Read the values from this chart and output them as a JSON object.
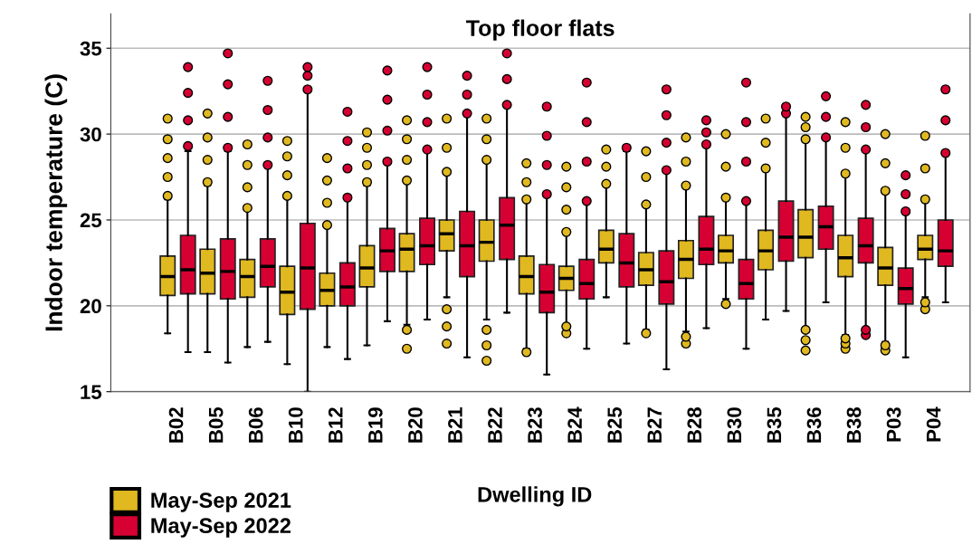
{
  "chart_data": {
    "type": "box",
    "title": "Top floor flats",
    "xlabel": "Dwelling ID",
    "ylabel": "Indoor temperature (C)",
    "categories": [
      "B02",
      "B05",
      "B06",
      "B10",
      "B12",
      "B19",
      "B20",
      "B21",
      "B22",
      "B23",
      "B24",
      "B25",
      "B27",
      "B28",
      "B30",
      "B35",
      "B36",
      "B38",
      "P03",
      "P04"
    ],
    "ylim": [
      15,
      37
    ],
    "yticks": [
      15,
      20,
      25,
      30,
      35
    ],
    "grid": "y",
    "legend": "bottom left",
    "marker": "circle",
    "series": [
      {
        "name": "May-Sep 2021",
        "color": "#e0b820",
        "boxes": [
          {
            "low": 18.4,
            "q1": 20.6,
            "median": 21.7,
            "q3": 22.9,
            "high": 26.2,
            "outliers": [
              26.4,
              27.5,
              28.6,
              29.7,
              30.9
            ]
          },
          {
            "low": 17.3,
            "q1": 20.7,
            "median": 21.9,
            "q3": 23.3,
            "high": 27.0,
            "outliers": [
              27.2,
              28.5,
              29.8,
              31.2
            ]
          },
          {
            "low": 17.6,
            "q1": 20.5,
            "median": 21.7,
            "q3": 22.7,
            "high": 25.7,
            "outliers": [
              25.7,
              26.9,
              28.2,
              29.4
            ]
          },
          {
            "low": 16.6,
            "q1": 19.5,
            "median": 20.8,
            "q3": 22.3,
            "high": 26.3,
            "outliers": [
              26.4,
              27.6,
              28.7,
              29.6
            ]
          },
          {
            "low": 17.6,
            "q1": 20.0,
            "median": 20.9,
            "q3": 21.9,
            "high": 24.6,
            "outliers": [
              24.7,
              26.0,
              27.3,
              28.6
            ]
          },
          {
            "low": 17.7,
            "q1": 21.1,
            "median": 22.2,
            "q3": 23.5,
            "high": 27.0,
            "outliers": [
              27.2,
              28.2,
              29.2,
              30.1
            ]
          },
          {
            "low": 18.9,
            "q1": 22.0,
            "median": 23.3,
            "q3": 24.2,
            "high": 27.2,
            "outliers": [
              17.5,
              18.6,
              27.3,
              28.5,
              29.7,
              30.8
            ]
          },
          {
            "low": 20.5,
            "q1": 23.2,
            "median": 24.2,
            "q3": 25.0,
            "high": 27.7,
            "outliers": [
              17.8,
              18.8,
              19.8,
              27.8,
              29.2,
              30.9
            ]
          },
          {
            "low": 19.2,
            "q1": 22.6,
            "median": 23.7,
            "q3": 25.0,
            "high": 28.4,
            "outliers": [
              16.8,
              17.7,
              18.6,
              28.5,
              29.7,
              30.9
            ]
          },
          {
            "low": 17.5,
            "q1": 20.7,
            "median": 21.7,
            "q3": 22.9,
            "high": 26.1,
            "outliers": [
              17.3,
              26.2,
              27.2,
              28.3
            ]
          },
          {
            "low": 18.9,
            "q1": 20.9,
            "median": 21.6,
            "q3": 22.3,
            "high": 24.2,
            "outliers": [
              18.4,
              18.8,
              24.3,
              25.6,
              26.9,
              28.1
            ]
          },
          {
            "low": 20.5,
            "q1": 22.5,
            "median": 23.3,
            "q3": 24.4,
            "high": 27.0,
            "outliers": [
              27.1,
              28.1,
              29.1
            ]
          },
          {
            "low": 18.6,
            "q1": 21.2,
            "median": 22.1,
            "q3": 23.1,
            "high": 25.8,
            "outliers": [
              18.4,
              25.9,
              27.5,
              29.0
            ]
          },
          {
            "low": 18.5,
            "q1": 21.6,
            "median": 22.7,
            "q3": 23.8,
            "high": 26.9,
            "outliers": [
              17.8,
              18.2,
              27.0,
              28.4,
              29.8
            ]
          },
          {
            "low": 20.4,
            "q1": 22.5,
            "median": 23.2,
            "q3": 24.1,
            "high": 26.2,
            "outliers": [
              20.1,
              26.3,
              28.1,
              30.0
            ]
          },
          {
            "low": 19.2,
            "q1": 22.1,
            "median": 23.2,
            "q3": 24.4,
            "high": 27.9,
            "outliers": [
              28.0,
              29.5,
              30.9
            ]
          },
          {
            "low": 18.7,
            "q1": 22.8,
            "median": 24.0,
            "q3": 25.6,
            "high": 29.6,
            "outliers": [
              17.4,
              18.0,
              18.6,
              29.7,
              30.4,
              31.0
            ]
          },
          {
            "low": 18.3,
            "q1": 21.7,
            "median": 22.8,
            "q3": 24.1,
            "high": 27.6,
            "outliers": [
              17.5,
              17.8,
              18.1,
              27.7,
              29.2,
              30.7
            ]
          },
          {
            "low": 17.9,
            "q1": 21.2,
            "median": 22.2,
            "q3": 23.4,
            "high": 26.6,
            "outliers": [
              17.4,
              17.7,
              26.7,
              28.3,
              30.0
            ]
          },
          {
            "low": 20.5,
            "q1": 22.7,
            "median": 23.3,
            "q3": 24.1,
            "high": 26.1,
            "outliers": [
              19.8,
              20.2,
              26.2,
              28.0,
              29.9
            ]
          }
        ]
      },
      {
        "name": "May-Sep 2022",
        "color": "#d70032",
        "boxes": [
          {
            "low": 17.3,
            "q1": 20.7,
            "median": 22.1,
            "q3": 24.1,
            "high": 29.0,
            "outliers": [
              29.3,
              30.8,
              32.4,
              33.9
            ]
          },
          {
            "low": 16.7,
            "q1": 20.4,
            "median": 22.0,
            "q3": 23.9,
            "high": 29.0,
            "outliers": [
              29.2,
              31.0,
              32.9,
              34.7
            ]
          },
          {
            "low": 17.9,
            "q1": 21.1,
            "median": 22.3,
            "q3": 23.9,
            "high": 28.1,
            "outliers": [
              28.2,
              29.8,
              31.4,
              33.1
            ]
          },
          {
            "low": 15.0,
            "q1": 19.8,
            "median": 22.2,
            "q3": 24.8,
            "high": 32.5,
            "outliers": [
              32.6,
              33.4,
              33.9
            ]
          },
          {
            "low": 16.9,
            "q1": 20.0,
            "median": 21.1,
            "q3": 22.5,
            "high": 26.2,
            "outliers": [
              26.3,
              28.0,
              29.6,
              31.3
            ]
          },
          {
            "low": 19.1,
            "q1": 22.0,
            "median": 23.2,
            "q3": 24.5,
            "high": 28.3,
            "outliers": [
              28.4,
              30.2,
              32.0,
              33.7
            ]
          },
          {
            "low": 19.2,
            "q1": 22.4,
            "median": 23.5,
            "q3": 25.1,
            "high": 29.0,
            "outliers": [
              29.1,
              30.7,
              32.3,
              33.9
            ]
          },
          {
            "low": 17.0,
            "q1": 21.7,
            "median": 23.5,
            "q3": 25.5,
            "high": 31.1,
            "outliers": [
              31.2,
              32.3,
              33.4
            ]
          },
          {
            "low": 19.6,
            "q1": 22.7,
            "median": 24.7,
            "q3": 26.3,
            "high": 31.7,
            "outliers": [
              31.7,
              33.2,
              34.7
            ]
          },
          {
            "low": 16.0,
            "q1": 19.6,
            "median": 20.8,
            "q3": 22.4,
            "high": 26.5,
            "outliers": [
              26.5,
              28.2,
              29.9,
              31.6
            ]
          },
          {
            "low": 17.5,
            "q1": 20.4,
            "median": 21.3,
            "q3": 22.7,
            "high": 26.0,
            "outliers": [
              26.1,
              28.4,
              30.7,
              33.0
            ]
          },
          {
            "low": 17.8,
            "q1": 21.1,
            "median": 22.5,
            "q3": 24.2,
            "high": 29.0,
            "outliers": [
              29.2
            ]
          },
          {
            "low": 16.3,
            "q1": 20.1,
            "median": 21.4,
            "q3": 23.2,
            "high": 27.8,
            "outliers": [
              27.9,
              29.5,
              31.1,
              32.6
            ]
          },
          {
            "low": 18.7,
            "q1": 22.4,
            "median": 23.3,
            "q3": 25.2,
            "high": 29.4,
            "outliers": [
              29.4,
              30.1,
              30.8
            ]
          },
          {
            "low": 17.5,
            "q1": 20.4,
            "median": 21.3,
            "q3": 22.7,
            "high": 26.0,
            "outliers": [
              26.1,
              28.4,
              30.7,
              33.0
            ]
          },
          {
            "low": 19.7,
            "q1": 22.6,
            "median": 24.0,
            "q3": 26.1,
            "high": 31.1,
            "outliers": [
              31.2,
              31.6
            ]
          },
          {
            "low": 20.2,
            "q1": 23.3,
            "median": 24.6,
            "q3": 25.8,
            "high": 29.7,
            "outliers": [
              29.8,
              31.0,
              32.2
            ]
          },
          {
            "low": 18.7,
            "q1": 22.5,
            "median": 23.5,
            "q3": 25.1,
            "high": 29.0,
            "outliers": [
              18.3,
              18.6,
              29.1,
              30.4,
              31.7
            ]
          },
          {
            "low": 17.0,
            "q1": 20.1,
            "median": 21.0,
            "q3": 22.2,
            "high": 25.4,
            "outliers": [
              25.5,
              26.5,
              27.6
            ]
          },
          {
            "low": 20.2,
            "q1": 22.3,
            "median": 23.2,
            "q3": 25.0,
            "high": 28.8,
            "outliers": [
              28.9,
              30.8,
              32.6
            ]
          }
        ]
      }
    ]
  }
}
